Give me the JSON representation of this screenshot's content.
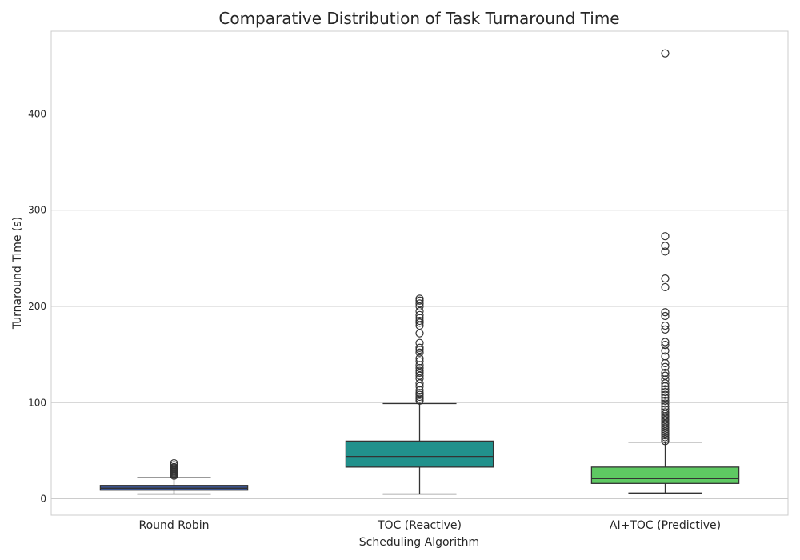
{
  "chart_data": {
    "type": "box",
    "title": "Comparative Distribution of Task Turnaround Time",
    "xlabel": "Scheduling Algorithm",
    "ylabel": "Turnaround Time (s)",
    "ylim": [
      -17,
      486
    ],
    "yticks": [
      0,
      100,
      200,
      300,
      400
    ],
    "grid": true,
    "categories": [
      "Round Robin",
      "TOC (Reactive)",
      "AI+TOC (Predictive)"
    ],
    "series": [
      {
        "color": "#3b528b",
        "whisker_low": 5,
        "q1": 9,
        "median": 11,
        "q3": 14,
        "whisker_high": 22,
        "fliers": [
          24,
          25,
          26,
          27,
          28,
          29,
          30,
          31,
          32,
          33,
          35,
          37
        ]
      },
      {
        "color": "#21918c",
        "whisker_low": 5,
        "q1": 33,
        "median": 44,
        "q3": 60,
        "whisker_high": 99,
        "fliers": [
          102,
          104,
          106,
          108,
          110,
          113,
          117,
          120,
          125,
          128,
          131,
          133,
          136,
          139,
          143,
          146,
          152,
          155,
          157,
          162,
          172,
          180,
          183,
          185,
          188,
          191,
          195,
          200,
          203,
          206,
          208
        ]
      },
      {
        "color": "#5ec962",
        "whisker_low": 6,
        "q1": 16,
        "median": 21,
        "q3": 33,
        "whisker_high": 59,
        "fliers": [
          60,
          62,
          64,
          66,
          68,
          70,
          72,
          74,
          76,
          78,
          80,
          82,
          84,
          86,
          88,
          90,
          93,
          96,
          99,
          102,
          105,
          108,
          111,
          114,
          117,
          120,
          124,
          128,
          131,
          137,
          141,
          148,
          154,
          160,
          163,
          176,
          180,
          190,
          194,
          220,
          229,
          257,
          263,
          273,
          463
        ]
      }
    ]
  }
}
